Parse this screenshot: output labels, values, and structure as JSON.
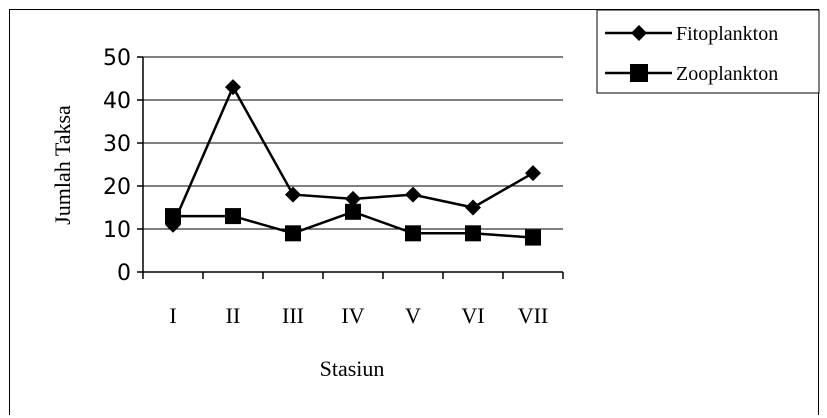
{
  "chart_data": {
    "type": "line",
    "categories": [
      "I",
      "II",
      "III",
      "IV",
      "V",
      "VI",
      "VII"
    ],
    "series": [
      {
        "name": "Fitoplankton",
        "values": [
          11,
          43,
          18,
          17,
          18,
          15,
          23
        ],
        "marker": "diamond"
      },
      {
        "name": "Zooplankton",
        "values": [
          13,
          13,
          9,
          14,
          9,
          9,
          8
        ],
        "marker": "square"
      }
    ],
    "xlabel": "Stasiun",
    "ylabel": "Jumlah Taksa",
    "ylim": [
      0,
      50
    ],
    "yticks": [
      "0",
      "10",
      "20",
      "30",
      "40",
      "50"
    ],
    "grid": true,
    "legend_position": "top-right",
    "colors": {
      "line": "#000000",
      "grid": "#000000",
      "background": "#ffffff"
    }
  }
}
